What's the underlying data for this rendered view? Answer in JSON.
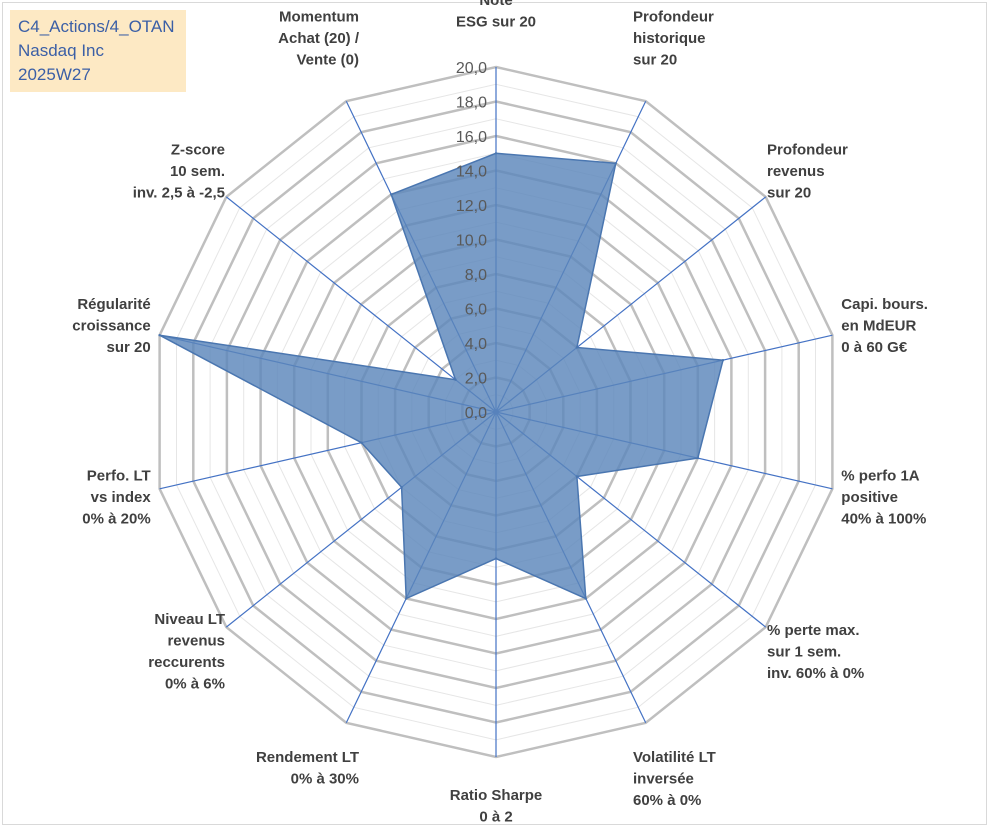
{
  "info": {
    "line1": "C4_Actions/4_OTAN",
    "line2": "Nasdaq Inc",
    "line3": "2025W27"
  },
  "colors": {
    "grid_major": "#bfbfbf",
    "grid_minor": "#e6e6e6",
    "spoke": "#4472c4",
    "fill": "#5b86bb",
    "stroke": "#4a76b0",
    "label": "#404040",
    "info_bg": "#fde9c4",
    "info_text": "#3b5fa6"
  },
  "chart_data": {
    "type": "radar",
    "r_min": 0,
    "r_max": 20,
    "major_step": 2,
    "minor_step": 1,
    "tick_labels": [
      "0,0",
      "2,0",
      "4,0",
      "6,0",
      "8,0",
      "10,0",
      "12,0",
      "14,0",
      "16,0",
      "18,0",
      "20,0"
    ],
    "axes": [
      {
        "label": [
          "Note",
          "ESG sur 20"
        ],
        "value": 15.0
      },
      {
        "label": [
          "Profondeur",
          "historique",
          "sur 20"
        ],
        "value": 16.0
      },
      {
        "label": [
          "Profondeur",
          "revenus",
          "sur 20"
        ],
        "value": 6.0
      },
      {
        "label": [
          "Capi. bours.",
          "en MdEUR",
          "0 à 60 G€"
        ],
        "value": 13.5
      },
      {
        "label": [
          "% perfo 1A",
          "positive",
          "40% à 100%"
        ],
        "value": 12.0
      },
      {
        "label": [
          "% perte max.",
          "sur 1 sem.",
          "inv. 60% à 0%"
        ],
        "value": 6.0
      },
      {
        "label": [
          "Volatilité LT",
          "inversée",
          "60% à 0%"
        ],
        "value": 12.0
      },
      {
        "label": [
          "Ratio Sharpe",
          "0 à 2"
        ],
        "value": 8.5
      },
      {
        "label": [
          "Rendement LT",
          "0% à 30%"
        ],
        "value": 12.0
      },
      {
        "label": [
          "Niveau LT",
          "revenus",
          "reccurents",
          "0% à 6%"
        ],
        "value": 7.0
      },
      {
        "label": [
          "Perfo. LT",
          "vs index",
          "0% à 20%"
        ],
        "value": 8.0
      },
      {
        "label": [
          "Régularité",
          "croissance",
          "sur 20"
        ],
        "value": 20.0
      },
      {
        "label": [
          "Z-score",
          "10 sem.",
          "inv. 2,5 à -2,5"
        ],
        "value": 3.0
      },
      {
        "label": [
          "Momentum",
          "Achat (20) /",
          "Vente (0)"
        ],
        "value": 14.0
      }
    ]
  }
}
